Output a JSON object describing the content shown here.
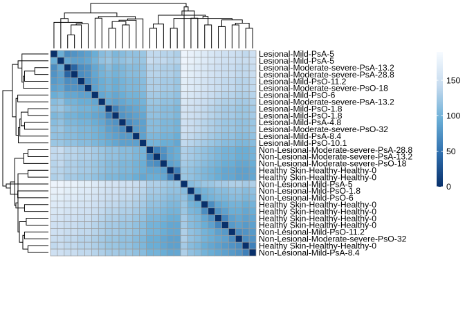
{
  "chart_data": {
    "type": "heatmap",
    "title": "",
    "xlabel": "",
    "ylabel": "",
    "row_labels": [
      "Lesional-Mild-PsA-5",
      "Lesional-Mild-PsA-5",
      "Lesional-Moderate-severe-PsA-13.2",
      "Lesional-Moderate-severe-PsA-28.8",
      "Lesional-Mild-PsO-11.2",
      "Lesional-Moderate-severe-PsO-18",
      "Lesional-Mild-PsO-6",
      "Lesional-Moderate-severe-PsA-13.2",
      "Lesional-Mild-PsO-1.8",
      "Lesional-Mild-PsO-1.8",
      "Lesional-Mild-PsA-4.8",
      "Lesional-Moderate-severe-PsO-32",
      "Lesional-Mild-PsA-8.4",
      "Lesional-Mild-PsO-10.1",
      "Non-Lesional-Moderate-severe-PsA-28.8",
      "Non-Lesional-Moderate-severe-PsA-13.2",
      "Non-Lesional-Moderate-severe-PsO-18",
      "Healthy Skin-Healthy-Healthy-0",
      "Healthy Skin-Healthy-Healthy-0",
      "Non-Lesional-Mild-PsA-5",
      "Non-Lesional-Mild-PsO-1.8",
      "Non-Lesional-Mild-PsO-6",
      "Healthy Skin-Healthy-Healthy-0",
      "Healthy Skin-Healthy-Healthy-0",
      "Healthy Skin-Healthy-Healthy-0",
      "Healthy Skin-Healthy-Healthy-0",
      "Non-Lesional-Mild-PsO-11.2",
      "Non-Lesional-Moderate-severe-PsO-32",
      "Healthy Skin-Healthy-Healthy-0",
      "Non-Lesional-Mild-PsA-8.4"
    ],
    "legend": {
      "ticks": [
        0,
        50,
        100,
        150
      ],
      "range": [
        0,
        190
      ],
      "colors": [
        "#08306b",
        "#2f6fae",
        "#6aaed6",
        "#c6dbef",
        "#f7fbff"
      ]
    },
    "matrix": [
      [
        0,
        95,
        70,
        75,
        80,
        85,
        95,
        110,
        115,
        105,
        110,
        115,
        115,
        120,
        140,
        140,
        135,
        135,
        130,
        180,
        175,
        170,
        165,
        160,
        155,
        150,
        150,
        145,
        140,
        150
      ],
      [
        95,
        0,
        90,
        85,
        85,
        90,
        100,
        115,
        120,
        110,
        115,
        120,
        115,
        120,
        145,
        140,
        140,
        135,
        135,
        180,
        175,
        170,
        165,
        160,
        155,
        150,
        150,
        145,
        145,
        150
      ],
      [
        70,
        90,
        0,
        40,
        70,
        75,
        90,
        100,
        110,
        100,
        105,
        110,
        110,
        115,
        135,
        135,
        130,
        130,
        125,
        175,
        170,
        165,
        160,
        155,
        150,
        145,
        145,
        140,
        140,
        145
      ],
      [
        75,
        85,
        40,
        0,
        70,
        75,
        90,
        100,
        105,
        100,
        105,
        110,
        110,
        115,
        135,
        135,
        130,
        130,
        125,
        175,
        170,
        165,
        160,
        155,
        150,
        145,
        145,
        140,
        140,
        145
      ],
      [
        80,
        85,
        70,
        70,
        0,
        70,
        85,
        95,
        100,
        95,
        100,
        105,
        105,
        110,
        130,
        130,
        125,
        125,
        120,
        170,
        165,
        160,
        155,
        150,
        145,
        140,
        140,
        135,
        135,
        140
      ],
      [
        85,
        90,
        75,
        75,
        70,
        0,
        85,
        95,
        100,
        95,
        100,
        105,
        105,
        110,
        130,
        130,
        125,
        125,
        120,
        170,
        165,
        160,
        155,
        150,
        145,
        140,
        140,
        135,
        135,
        140
      ],
      [
        95,
        100,
        90,
        90,
        85,
        85,
        0,
        90,
        95,
        90,
        95,
        100,
        100,
        105,
        125,
        125,
        120,
        120,
        115,
        165,
        160,
        155,
        150,
        145,
        140,
        135,
        135,
        130,
        130,
        135
      ],
      [
        110,
        115,
        100,
        100,
        95,
        95,
        90,
        0,
        90,
        85,
        90,
        95,
        95,
        100,
        120,
        120,
        115,
        115,
        110,
        160,
        155,
        150,
        145,
        140,
        135,
        130,
        130,
        125,
        125,
        130
      ],
      [
        115,
        120,
        110,
        105,
        100,
        100,
        95,
        90,
        0,
        60,
        80,
        85,
        90,
        95,
        115,
        115,
        110,
        110,
        105,
        155,
        150,
        145,
        140,
        135,
        130,
        125,
        125,
        120,
        120,
        125
      ],
      [
        105,
        110,
        100,
        100,
        95,
        95,
        90,
        85,
        60,
        0,
        75,
        80,
        85,
        90,
        115,
        115,
        110,
        110,
        105,
        155,
        150,
        145,
        140,
        135,
        130,
        125,
        125,
        120,
        120,
        125
      ],
      [
        110,
        115,
        105,
        105,
        100,
        100,
        95,
        90,
        80,
        75,
        0,
        70,
        80,
        85,
        110,
        110,
        105,
        105,
        100,
        150,
        145,
        140,
        135,
        130,
        125,
        120,
        120,
        115,
        115,
        120
      ],
      [
        115,
        120,
        110,
        110,
        105,
        105,
        100,
        95,
        85,
        80,
        70,
        0,
        80,
        85,
        110,
        110,
        105,
        105,
        100,
        150,
        145,
        140,
        135,
        130,
        125,
        120,
        120,
        115,
        115,
        120
      ],
      [
        115,
        115,
        110,
        110,
        105,
        105,
        100,
        95,
        90,
        85,
        80,
        80,
        0,
        85,
        105,
        105,
        100,
        100,
        95,
        145,
        140,
        135,
        130,
        125,
        120,
        115,
        115,
        110,
        110,
        115
      ],
      [
        120,
        120,
        115,
        115,
        110,
        110,
        105,
        100,
        95,
        90,
        85,
        85,
        85,
        0,
        100,
        100,
        95,
        95,
        90,
        140,
        135,
        130,
        125,
        120,
        115,
        110,
        110,
        105,
        105,
        110
      ],
      [
        140,
        145,
        135,
        135,
        130,
        130,
        125,
        120,
        115,
        115,
        110,
        110,
        105,
        100,
        0,
        60,
        75,
        90,
        95,
        130,
        125,
        120,
        115,
        110,
        105,
        100,
        100,
        95,
        95,
        100
      ],
      [
        140,
        140,
        135,
        135,
        130,
        130,
        125,
        120,
        115,
        115,
        110,
        110,
        105,
        100,
        60,
        0,
        70,
        90,
        95,
        130,
        125,
        120,
        115,
        110,
        105,
        100,
        100,
        95,
        95,
        100
      ],
      [
        135,
        140,
        130,
        130,
        125,
        125,
        120,
        115,
        110,
        110,
        105,
        105,
        100,
        95,
        75,
        70,
        0,
        85,
        90,
        125,
        120,
        115,
        110,
        105,
        100,
        95,
        95,
        90,
        90,
        95
      ],
      [
        135,
        135,
        130,
        130,
        125,
        125,
        120,
        115,
        110,
        110,
        105,
        105,
        100,
        95,
        90,
        90,
        85,
        0,
        60,
        120,
        115,
        110,
        105,
        100,
        95,
        90,
        90,
        85,
        85,
        90
      ],
      [
        130,
        135,
        125,
        125,
        120,
        120,
        115,
        110,
        105,
        105,
        100,
        100,
        95,
        90,
        95,
        95,
        90,
        60,
        0,
        120,
        115,
        110,
        105,
        100,
        95,
        90,
        90,
        85,
        85,
        90
      ],
      [
        180,
        180,
        175,
        175,
        170,
        170,
        165,
        160,
        155,
        155,
        150,
        150,
        145,
        140,
        130,
        130,
        125,
        120,
        120,
        0,
        110,
        115,
        120,
        120,
        125,
        125,
        130,
        130,
        125,
        130
      ],
      [
        175,
        175,
        170,
        170,
        165,
        165,
        160,
        155,
        150,
        150,
        145,
        145,
        140,
        135,
        125,
        125,
        120,
        115,
        115,
        110,
        0,
        90,
        100,
        105,
        110,
        110,
        115,
        115,
        110,
        115
      ],
      [
        170,
        170,
        165,
        165,
        160,
        160,
        155,
        150,
        145,
        145,
        140,
        140,
        135,
        130,
        120,
        120,
        115,
        110,
        110,
        115,
        90,
        0,
        95,
        100,
        105,
        105,
        110,
        110,
        105,
        110
      ],
      [
        165,
        165,
        160,
        160,
        155,
        155,
        150,
        145,
        140,
        140,
        135,
        135,
        130,
        125,
        115,
        115,
        110,
        105,
        105,
        120,
        100,
        95,
        0,
        70,
        90,
        95,
        100,
        100,
        95,
        100
      ],
      [
        160,
        160,
        155,
        155,
        150,
        150,
        145,
        140,
        135,
        135,
        130,
        130,
        125,
        120,
        110,
        110,
        105,
        100,
        100,
        120,
        105,
        100,
        70,
        0,
        75,
        85,
        95,
        95,
        90,
        95
      ],
      [
        155,
        155,
        150,
        150,
        145,
        145,
        140,
        135,
        130,
        130,
        125,
        125,
        120,
        115,
        105,
        105,
        100,
        95,
        95,
        125,
        110,
        105,
        90,
        75,
        0,
        65,
        85,
        90,
        85,
        90
      ],
      [
        150,
        150,
        145,
        145,
        140,
        140,
        135,
        130,
        125,
        125,
        120,
        120,
        115,
        110,
        100,
        100,
        95,
        90,
        90,
        125,
        110,
        105,
        95,
        85,
        65,
        0,
        80,
        85,
        80,
        85
      ],
      [
        150,
        150,
        145,
        145,
        140,
        140,
        135,
        130,
        125,
        125,
        120,
        120,
        115,
        110,
        100,
        100,
        95,
        90,
        90,
        130,
        115,
        110,
        100,
        95,
        85,
        80,
        0,
        70,
        75,
        80
      ],
      [
        145,
        145,
        140,
        140,
        135,
        135,
        130,
        125,
        120,
        120,
        115,
        115,
        110,
        105,
        95,
        95,
        90,
        85,
        85,
        130,
        115,
        110,
        100,
        95,
        90,
        85,
        70,
        0,
        70,
        75
      ],
      [
        140,
        145,
        140,
        140,
        135,
        135,
        130,
        125,
        120,
        120,
        115,
        115,
        110,
        105,
        95,
        95,
        90,
        85,
        85,
        125,
        110,
        105,
        95,
        90,
        85,
        80,
        75,
        70,
        0,
        60
      ],
      [
        150,
        150,
        145,
        145,
        140,
        140,
        135,
        130,
        125,
        125,
        120,
        120,
        115,
        110,
        100,
        100,
        95,
        90,
        90,
        130,
        115,
        110,
        100,
        95,
        90,
        85,
        80,
        75,
        60,
        0
      ]
    ]
  }
}
